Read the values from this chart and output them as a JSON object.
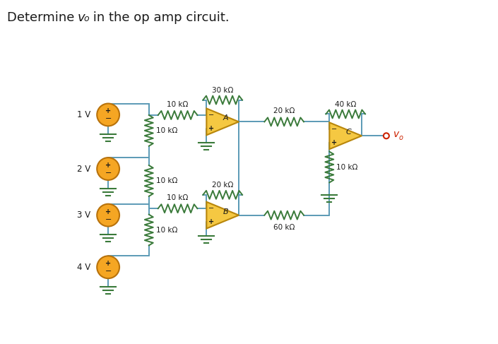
{
  "title_text": "Determine ",
  "title_vo": "v",
  "title_sub": "o",
  "title_rest": " in the op amp circuit.",
  "bg_color": "#ffffff",
  "wire_color": "#5b9ab5",
  "resistor_color": "#3a7a3a",
  "opamp_fill": "#f5c842",
  "opamp_edge": "#b8860b",
  "source_fill": "#f5a623",
  "source_edge": "#b8720b",
  "text_color": "#1a1a1a",
  "ground_color": "#3a7a3a",
  "vo_color": "#cc2200",
  "labels": {
    "30k": "30 kΩ",
    "40k": "40 kΩ",
    "10k": "10 kΩ",
    "20k": "20 kΩ",
    "60k": "60 kΩ",
    "1V": "1 V",
    "2V": "2 V",
    "3V": "3 V",
    "4V": "4 V",
    "vo": "v",
    "vo_sub": "o"
  },
  "figsize": [
    7.05,
    4.87
  ],
  "dpi": 100
}
